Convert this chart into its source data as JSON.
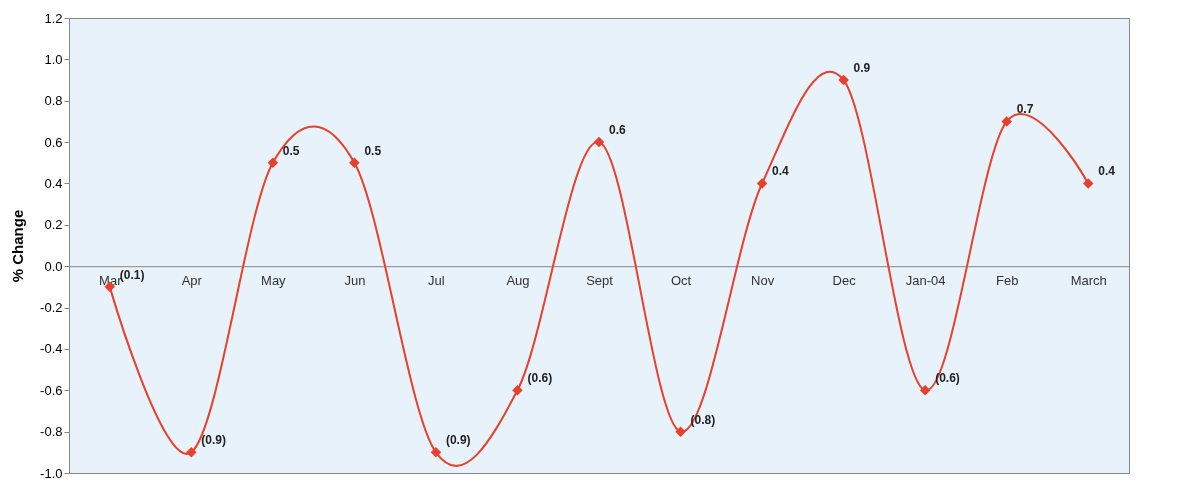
{
  "chart_data": {
    "type": "line",
    "ylabel": "% Change",
    "categories": [
      "Mar",
      "Apr",
      "May",
      "Jun",
      "Jul",
      "Aug",
      "Sept",
      "Oct",
      "Nov",
      "Dec",
      "Jan-04",
      "Feb",
      "March"
    ],
    "series": [
      {
        "color": "#e8402a",
        "values": [
          -0.1,
          -0.9,
          0.5,
          0.5,
          -0.9,
          -0.6,
          0.6,
          -0.8,
          0.4,
          0.9,
          -0.6,
          0.7,
          0.4
        ],
        "value_labels": [
          "(0.1)",
          "(0.9)",
          "0.5",
          "0.5",
          "(0.9)",
          "(0.6)",
          "0.6",
          "(0.8)",
          "0.4",
          "0.9",
          "(0.6)",
          "0.7",
          "0.4"
        ]
      }
    ],
    "ylim": [
      -1,
      1.2
    ],
    "yticks": [
      {
        "value": -1,
        "label": "-1.0"
      },
      {
        "value": -0.8,
        "label": "-0.8"
      },
      {
        "value": -0.6,
        "label": "-0.6"
      },
      {
        "value": -0.4,
        "label": "-0.4"
      },
      {
        "value": -0.2,
        "label": "-0.2"
      },
      {
        "value": 0,
        "label": "0.0"
      },
      {
        "value": 0.2,
        "label": "0.2"
      },
      {
        "value": 0.4,
        "label": "0.4"
      },
      {
        "value": 0.6,
        "label": "0.6"
      },
      {
        "value": 0.8,
        "label": "0.8"
      },
      {
        "value": 1,
        "label": "1.0"
      },
      {
        "value": 1.2,
        "label": "1.2"
      }
    ],
    "marker": "diamond",
    "line_style": "solid",
    "grid": false
  }
}
